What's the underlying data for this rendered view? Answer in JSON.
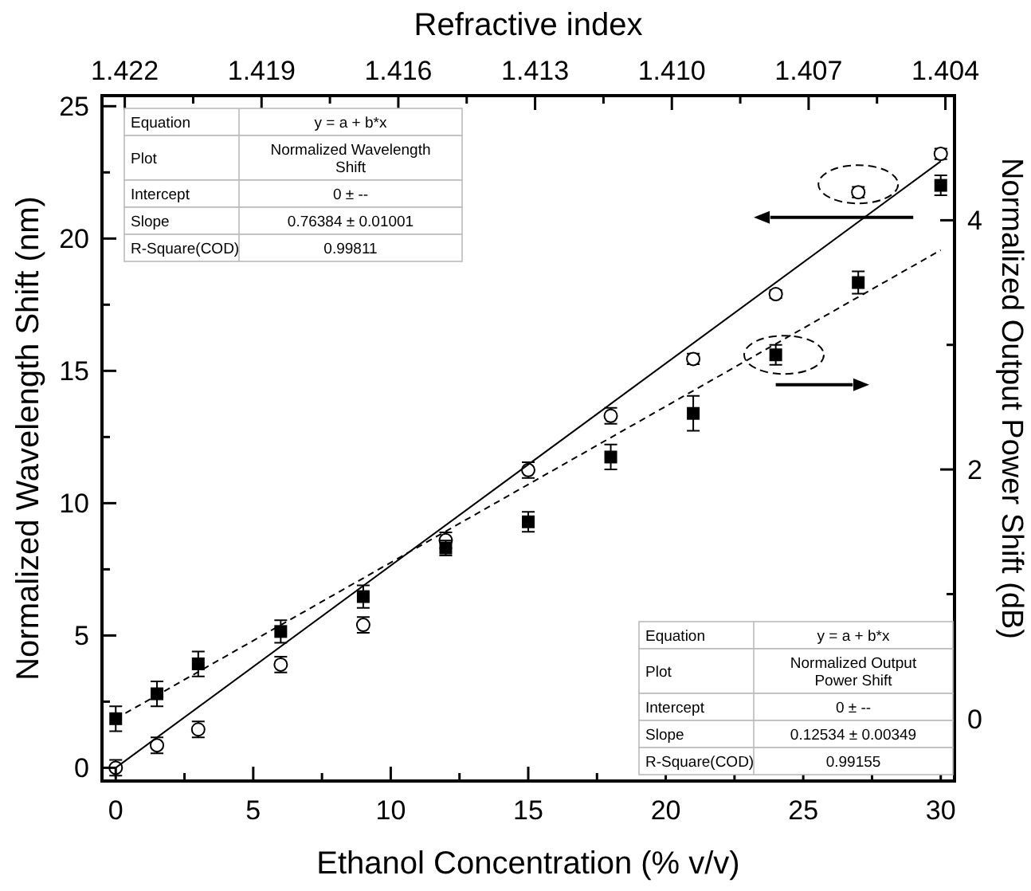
{
  "chart_data": {
    "type": "scatter",
    "xlabel": "Ethanol Concentration (% v/v)",
    "ylabel": "Normalized Wavelength Shift (nm)",
    "y2label": "Normalized Output Power Shift (dB)",
    "x2label": "Refractive index",
    "xlim": [
      -0.5,
      30.5
    ],
    "xticks": [
      0,
      {
        "value": 2.5,
        "label": null
      },
      5,
      {
        "value": 7.5,
        "label": null
      },
      10,
      {
        "value": 12.5,
        "label": null
      },
      15,
      {
        "value": 17.5,
        "label": null
      },
      20,
      {
        "value": 22.5,
        "label": null
      },
      25,
      {
        "value": 27.5,
        "label": null
      },
      30
    ],
    "ylim": [
      -0.5,
      25.4
    ],
    "yticks": [
      0,
      {
        "value": 2.5,
        "label": null
      },
      5,
      {
        "value": 7.5,
        "label": null
      },
      10,
      {
        "value": 12.5,
        "label": null
      },
      15,
      {
        "value": 17.5,
        "label": null
      },
      20,
      {
        "value": 22.5,
        "label": null
      },
      25
    ],
    "y2lim": [
      -0.5,
      5
    ],
    "y2ticks": [
      0,
      {
        "value": 1,
        "label": null
      },
      2,
      {
        "value": 3,
        "label": null
      },
      4
    ],
    "x2lim": [
      1.4225,
      1.4038
    ],
    "x2ticks": [
      {
        "value": 1.422,
        "label": "1.422"
      },
      {
        "value": 1.4205,
        "label": null
      },
      {
        "value": 1.419,
        "label": "1.419"
      },
      {
        "value": 1.4175,
        "label": null
      },
      {
        "value": 1.416,
        "label": "1.416"
      },
      {
        "value": 1.4145,
        "label": null
      },
      {
        "value": 1.413,
        "label": "1.413"
      },
      {
        "value": 1.4115,
        "label": null
      },
      {
        "value": 1.41,
        "label": "1.410"
      },
      {
        "value": 1.4085,
        "label": null
      },
      {
        "value": 1.407,
        "label": "1.407"
      },
      {
        "value": 1.4055,
        "label": null
      },
      {
        "value": 1.404,
        "label": "1.404"
      }
    ],
    "x": [
      0,
      1.5,
      3,
      6,
      9,
      12,
      15,
      18,
      21,
      24,
      27,
      30
    ],
    "grid": false,
    "series": [
      {
        "type": "scatter",
        "color": "#000000",
        "marker": "circle",
        "values": [
          0.0,
          0.85,
          1.45,
          3.9,
          5.4,
          8.6,
          11.25,
          13.3,
          15.45,
          17.9,
          21.75,
          23.2
        ],
        "errors": [
          0.3,
          0.3,
          0.3,
          0.3,
          0.3,
          0.3,
          0.3,
          0.3,
          0.2,
          0.15,
          0.2,
          0.2
        ]
      },
      {
        "type": "scatter",
        "color": "#000000",
        "marker": "square",
        "axis": "y2",
        "values": [
          0.0,
          0.2,
          0.44,
          0.7,
          0.98,
          1.37,
          1.58,
          2.1,
          2.45,
          2.92,
          3.5,
          4.28
        ],
        "errors": [
          0.1,
          0.1,
          0.1,
          0.09,
          0.09,
          0.06,
          0.08,
          0.1,
          0.14,
          0.08,
          0.09,
          0.08
        ]
      },
      {
        "type": "line",
        "color": "#000000",
        "line_style": "solid",
        "x": [
          0,
          15,
          30
        ],
        "values": [
          0,
          11.46,
          22.92
        ]
      },
      {
        "type": "line",
        "color": "#000000",
        "line_style": "dashed",
        "axis": "y2",
        "x": [
          0,
          15,
          30
        ],
        "values": [
          0,
          1.88,
          3.76
        ]
      }
    ],
    "annotations": [
      "Equation",
      "y = a + b*x",
      "Plot",
      "Normalized Wavelength Shift",
      "Intercept",
      "0 ± --",
      "Slope",
      "0.76384 ± 0.01001",
      "R-Square(COD)",
      "0.99811",
      "Equation",
      "y = a + b*x",
      "Plot",
      "Normalized Output Power Shift",
      "Intercept",
      "0 ± --",
      "Slope",
      "0.12534 ± 0.00349",
      "R-Square(COD)",
      "0.99155"
    ]
  }
}
